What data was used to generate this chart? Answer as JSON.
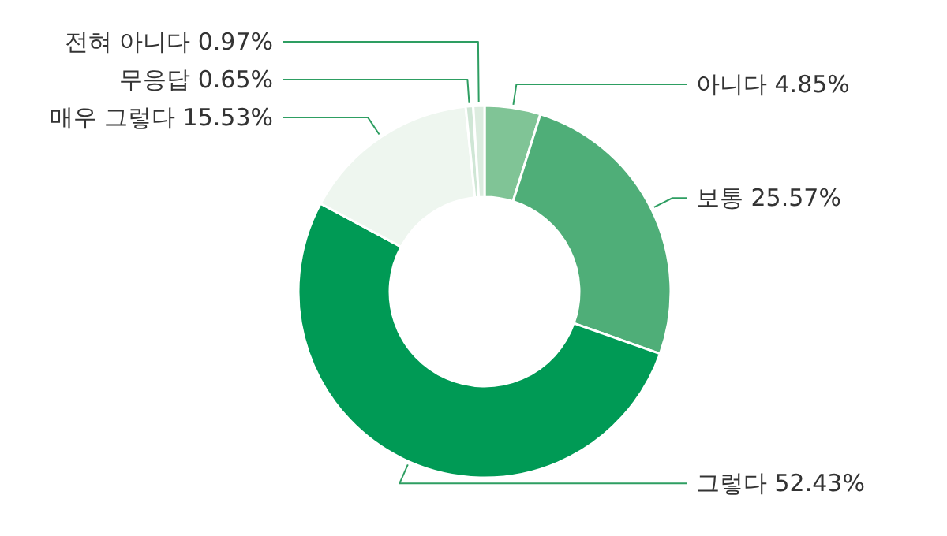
{
  "chart_data": {
    "type": "donut",
    "categories": [
      "아니다",
      "보통",
      "그렇다",
      "매우 그렇다",
      "무응답",
      "전혀 아니다"
    ],
    "values": [
      4.85,
      25.57,
      52.43,
      15.53,
      0.65,
      0.97
    ],
    "value_labels": [
      "4.85%",
      "25.57%",
      "52.43%",
      "15.53%",
      "0.65%",
      "0.97%"
    ],
    "colors": [
      "#80c496",
      "#4fae78",
      "#009a55",
      "#eef6ef",
      "#cfe6d5",
      "#dcecdf"
    ]
  }
}
